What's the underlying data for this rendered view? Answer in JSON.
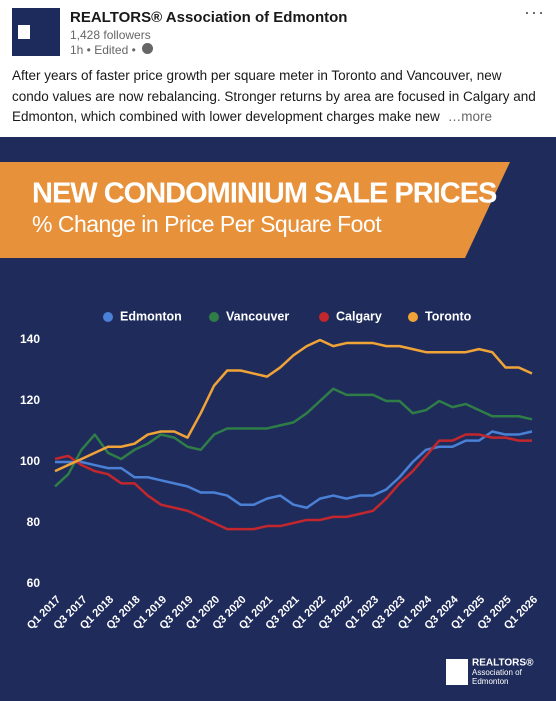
{
  "post": {
    "author": "REALTORS® Association of Edmonton",
    "followers": "1,428 followers",
    "time": "1h • Edited •",
    "body_lines": [
      "After years of faster price growth per square meter in Toronto and Vancouver, new",
      "condo values are now rebalancing. Stronger returns by area are focused in Calgary and",
      "Edmonton, which combined with lower development charges make new"
    ],
    "more": "…more"
  },
  "chart_data": {
    "type": "line",
    "title": "NEW CONDOMINIUM SALE PRICES",
    "subtitle": "% Change in Price Per Square Foot",
    "categories": [
      "Q1 2017",
      null,
      "Q3 2017",
      null,
      "Q1 2018",
      null,
      "Q3 2018",
      null,
      "Q1 2019",
      null,
      "Q3 2019",
      null,
      "Q1 2020",
      null,
      "Q3 2020",
      null,
      "Q1 2021",
      null,
      "Q3 2021",
      null,
      "Q1 2022",
      null,
      "Q3 2022",
      null,
      "Q1 2023",
      null,
      "Q3 2023",
      null,
      "Q1 2024",
      null,
      "Q3 2024",
      null,
      "Q1 2025",
      null,
      "Q3 2025",
      null,
      "Q1 2026"
    ],
    "series": [
      {
        "name": "Edmonton",
        "color": "#4a80d6",
        "values": [
          100,
          100,
          100,
          99,
          98,
          98,
          95,
          95,
          94,
          93,
          92,
          90,
          90,
          89,
          86,
          86,
          88,
          89,
          86,
          85,
          88,
          89,
          88,
          89,
          89,
          91,
          95,
          100,
          104,
          105,
          105,
          107,
          107,
          110,
          109,
          109,
          110
        ]
      },
      {
        "name": "Vancouver",
        "color": "#2f7d47",
        "values": [
          92,
          96,
          104,
          109,
          103,
          101,
          104,
          106,
          109,
          108,
          105,
          104,
          109,
          111,
          111,
          111,
          111,
          112,
          113,
          116,
          120,
          124,
          122,
          122,
          122,
          120,
          120,
          116,
          117,
          120,
          118,
          119,
          117,
          115,
          115,
          115,
          114
        ]
      },
      {
        "name": "Calgary",
        "color": "#c1272d",
        "values": [
          101,
          102,
          99,
          97,
          96,
          93,
          93,
          89,
          86,
          85,
          84,
          82,
          80,
          78,
          78,
          78,
          79,
          79,
          80,
          81,
          81,
          82,
          82,
          83,
          84,
          88,
          93,
          97,
          102,
          107,
          107,
          109,
          109,
          108,
          108,
          107,
          107
        ]
      },
      {
        "name": "Toronto",
        "color": "#f0a337",
        "values": [
          97,
          99,
          101,
          103,
          105,
          105,
          106,
          109,
          110,
          110,
          108,
          116,
          125,
          130,
          130,
          129,
          128,
          131,
          135,
          138,
          140,
          138,
          139,
          139,
          139,
          138,
          138,
          137,
          136,
          136,
          136,
          136,
          137,
          136,
          131,
          131,
          129
        ]
      }
    ],
    "ylim": [
      60,
      140
    ],
    "yticks": [
      60,
      80,
      100,
      120,
      140
    ],
    "grid": false,
    "legend": "top",
    "logo": [
      "REALTORS®",
      "Association of",
      "Edmonton"
    ]
  }
}
